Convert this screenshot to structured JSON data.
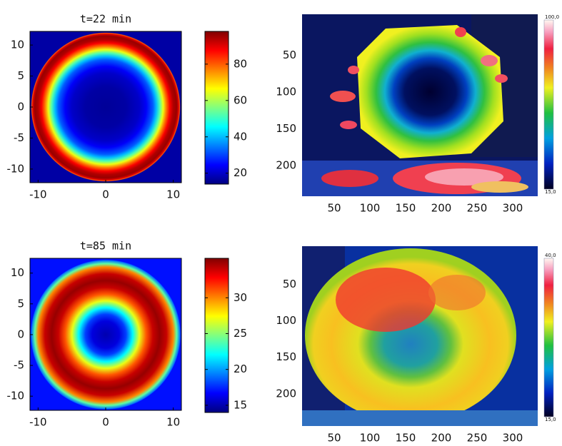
{
  "chart_data": [
    {
      "type": "heatmap",
      "title": "t=22 min",
      "colormap": "jet",
      "xlim": [
        -11.2,
        11.2
      ],
      "ylim": [
        -12.2,
        12.2
      ],
      "xticks": [
        -10,
        0,
        10
      ],
      "yticks": [
        -10,
        -5,
        0,
        5,
        10
      ],
      "clim": [
        14,
        98
      ],
      "cticks": [
        20,
        40,
        60,
        80
      ],
      "profile": {
        "r": [
          0,
          3,
          5,
          6,
          7,
          7.5,
          8,
          8.5,
          9,
          9.5,
          10,
          10.5,
          10.8,
          10.95,
          11.05
        ],
        "values": [
          16,
          17,
          20,
          24,
          32,
          40,
          52,
          65,
          78,
          88,
          94,
          96,
          90,
          80,
          17
        ]
      }
    },
    {
      "type": "heatmap",
      "title": "t=85 min",
      "colormap": "jet",
      "xlim": [
        -11.2,
        11.2
      ],
      "ylim": [
        -12.3,
        12.4
      ],
      "xticks": [
        -10,
        0,
        10
      ],
      "yticks": [
        -10,
        -5,
        0,
        5,
        10
      ],
      "clim": [
        14,
        35.5
      ],
      "cticks": [
        15,
        20,
        25,
        30
      ],
      "profile": {
        "r": [
          0,
          2,
          3,
          4,
          5,
          6,
          7,
          8,
          9,
          10,
          10.5,
          11,
          11.1
        ],
        "values": [
          15,
          16,
          18,
          22,
          27,
          31,
          34,
          35,
          34,
          30,
          24,
          19,
          17
        ]
      }
    },
    {
      "type": "thermal-image",
      "xlim": [
        5,
        335
      ],
      "ylim": [
        -6,
        242
      ],
      "xticks": [
        50,
        100,
        150,
        200,
        250,
        300
      ],
      "yticks": [
        50,
        100,
        150,
        200
      ],
      "clim": [
        15,
        100
      ],
      "cticks": [
        {
          "value": 15,
          "label": "15,0"
        },
        {
          "value": 100,
          "label": "100,0"
        }
      ]
    },
    {
      "type": "thermal-image",
      "xlim": [
        5,
        335
      ],
      "ylim": [
        -2,
        244
      ],
      "xticks": [
        50,
        100,
        150,
        200,
        250,
        300
      ],
      "yticks": [
        50,
        100,
        150,
        200
      ],
      "clim": [
        15,
        40
      ],
      "cticks": [
        {
          "value": 15,
          "label": "15,0"
        },
        {
          "value": 40,
          "label": "40,0"
        }
      ]
    }
  ]
}
